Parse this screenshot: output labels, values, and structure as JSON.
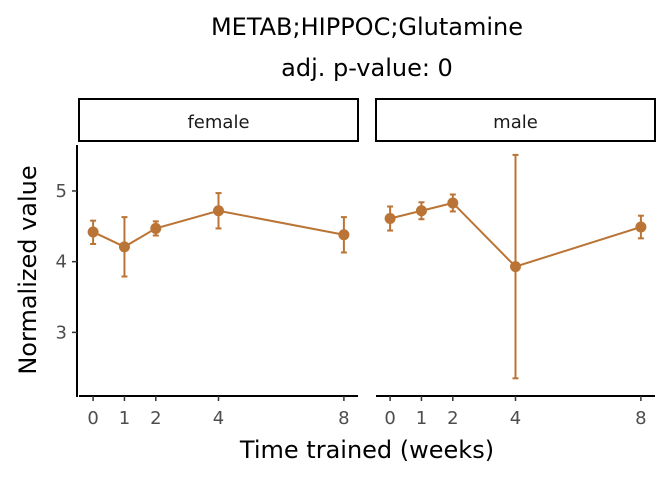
{
  "chart_data": {
    "type": "line",
    "title": "METAB;HIPPOC;Glutamine",
    "subtitle": "adj. p-value: 0",
    "xlabel": "Time trained (weeks)",
    "ylabel": "Normalized value",
    "xticks": [
      0,
      1,
      2,
      4,
      8
    ],
    "yticks": [
      3,
      4,
      5
    ],
    "xlim": [
      -0.45,
      8.45
    ],
    "ylim": [
      2.1,
      5.65
    ],
    "color": "#BA7435",
    "panels": [
      {
        "name": "female",
        "points": [
          {
            "x": 0,
            "y": 4.42,
            "ymin": 4.25,
            "ymax": 4.58
          },
          {
            "x": 1,
            "y": 4.21,
            "ymin": 3.79,
            "ymax": 4.63
          },
          {
            "x": 2,
            "y": 4.47,
            "ymin": 4.37,
            "ymax": 4.57
          },
          {
            "x": 4,
            "y": 4.72,
            "ymin": 4.47,
            "ymax": 4.97
          },
          {
            "x": 8,
            "y": 4.38,
            "ymin": 4.13,
            "ymax": 4.63
          }
        ]
      },
      {
        "name": "male",
        "points": [
          {
            "x": 0,
            "y": 4.61,
            "ymin": 4.44,
            "ymax": 4.78
          },
          {
            "x": 1,
            "y": 4.72,
            "ymin": 4.6,
            "ymax": 4.84
          },
          {
            "x": 2,
            "y": 4.83,
            "ymin": 4.71,
            "ymax": 4.95
          },
          {
            "x": 4,
            "y": 3.93,
            "ymin": 2.35,
            "ymax": 5.51
          },
          {
            "x": 8,
            "y": 4.49,
            "ymin": 4.33,
            "ymax": 4.65
          }
        ]
      }
    ]
  }
}
